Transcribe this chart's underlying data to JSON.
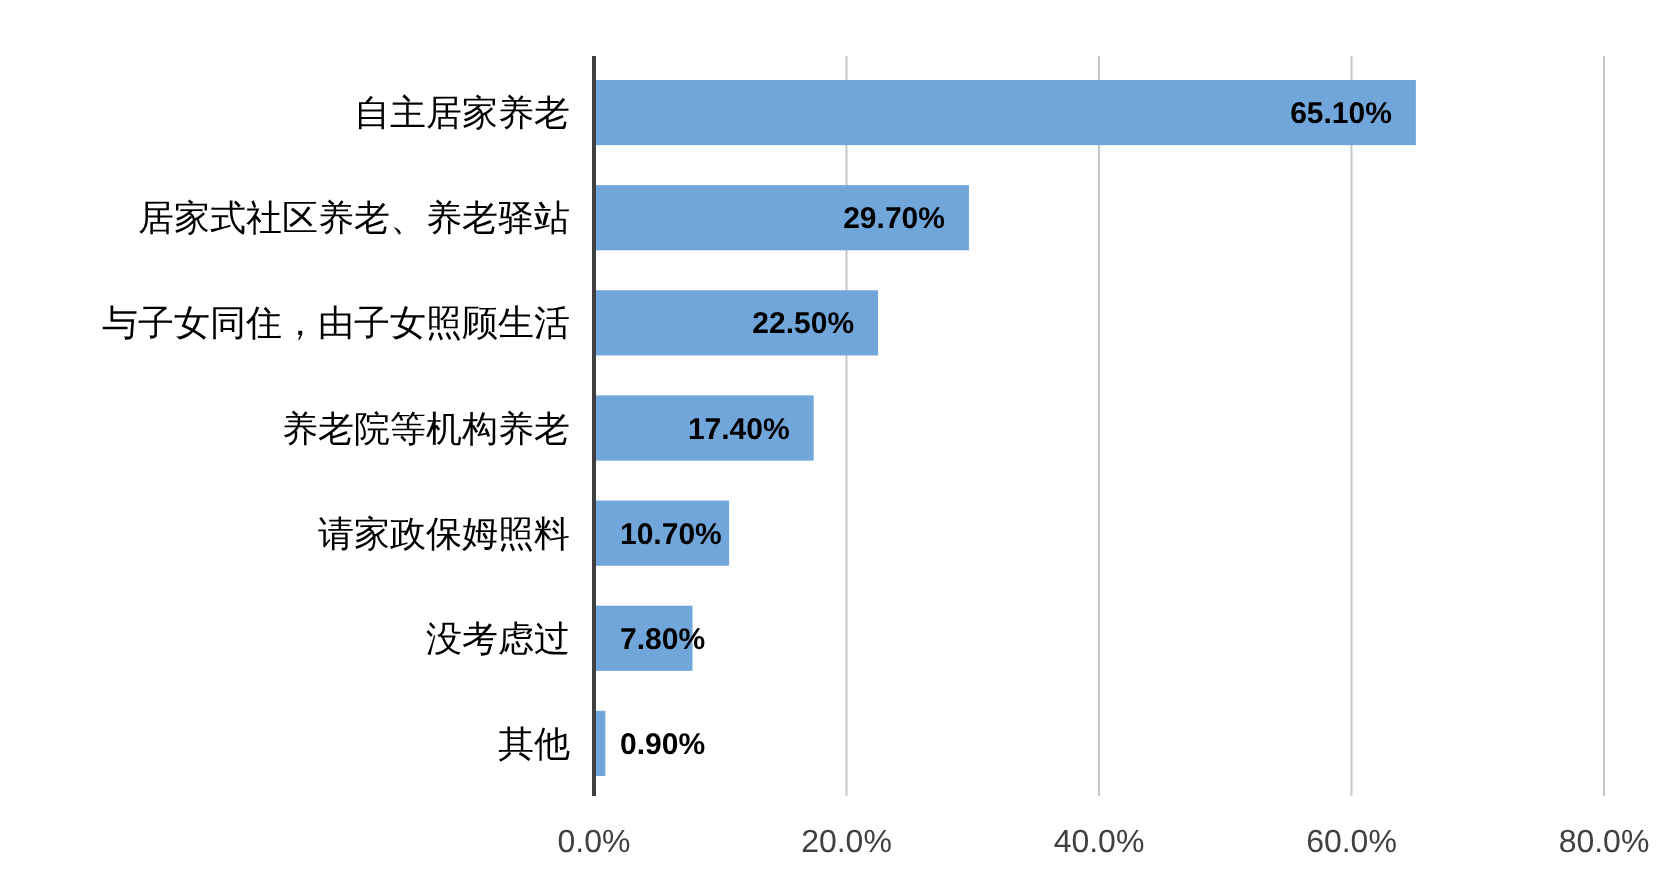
{
  "chart_data": {
    "type": "bar",
    "orientation": "horizontal",
    "categories": [
      "自主居家养老",
      "居家式社区养老、养老驿站",
      "与子女同住，由子女照顾生活",
      "养老院等机构养老",
      "请家政保姆照料",
      "没考虑过",
      "其他"
    ],
    "values": [
      65.1,
      29.7,
      22.5,
      17.4,
      10.7,
      7.8,
      0.9
    ],
    "value_labels": [
      "65.10%",
      "29.70%",
      "22.50%",
      "17.40%",
      "10.70%",
      "7.80%",
      "0.90%"
    ],
    "color": "#71a6db",
    "xlim": [
      0,
      80
    ],
    "xticks": [
      {
        "value": 0,
        "label": "0.0%"
      },
      {
        "value": 20,
        "label": "20.0%"
      },
      {
        "value": 40,
        "label": "40.0%"
      },
      {
        "value": 60,
        "label": "60.0%"
      },
      {
        "value": 80,
        "label": "80.0%"
      }
    ],
    "grid": "x"
  }
}
